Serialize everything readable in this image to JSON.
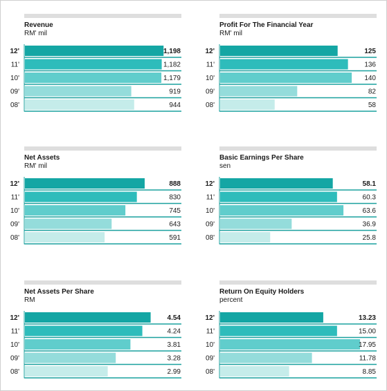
{
  "chart_data": [
    {
      "type": "bar",
      "title": "Revenue",
      "unit": "RM' mil",
      "categories": [
        "12'",
        "11'",
        "10'",
        "09'",
        "08'"
      ],
      "values": [
        1198,
        1182,
        1179,
        919,
        944
      ],
      "value_labels": [
        "1,198",
        "1,182",
        "1,179",
        "919",
        "944"
      ],
      "xlim": [
        0,
        1340
      ]
    },
    {
      "type": "bar",
      "title": "Profit For The Financial Year",
      "unit": "RM' mil",
      "categories": [
        "12'",
        "11'",
        "10'",
        "09'",
        "08'"
      ],
      "values": [
        125,
        136,
        140,
        82,
        58
      ],
      "value_labels": [
        "125",
        "136",
        "140",
        "82",
        "58"
      ],
      "xlim": [
        0,
        165
      ]
    },
    {
      "type": "bar",
      "title": "Net Assets",
      "unit": "RM' mil",
      "categories": [
        "12'",
        "11'",
        "10'",
        "09'",
        "08'"
      ],
      "values": [
        888,
        830,
        745,
        643,
        591
      ],
      "value_labels": [
        "888",
        "830",
        "745",
        "643",
        "591"
      ],
      "xlim": [
        0,
        1150
      ]
    },
    {
      "type": "bar",
      "title": "Basic Earnings Per Share",
      "unit": "sen",
      "categories": [
        "12'",
        "11'",
        "10'",
        "09'",
        "08'"
      ],
      "values": [
        58.1,
        60.3,
        63.6,
        36.9,
        25.8
      ],
      "value_labels": [
        "58.1",
        "60.3",
        "63.6",
        "36.9",
        "25.8"
      ],
      "xlim": [
        0,
        80
      ]
    },
    {
      "type": "bar",
      "title": "Net Assets Per Share",
      "unit": "RM",
      "categories": [
        "12'",
        "11'",
        "10'",
        "09'",
        "08'"
      ],
      "values": [
        4.54,
        4.24,
        3.81,
        3.28,
        2.99
      ],
      "value_labels": [
        "4.54",
        "4.24",
        "3.81",
        "3.28",
        "2.99"
      ],
      "xlim": [
        0,
        5.6
      ]
    },
    {
      "type": "bar",
      "title": "Return On Equity Holders",
      "unit": "percent",
      "categories": [
        "12'",
        "11'",
        "10'",
        "09'",
        "08'"
      ],
      "values": [
        13.23,
        15.0,
        17.95,
        11.78,
        8.85
      ],
      "value_labels": [
        "13.23",
        "15.00",
        "17.95",
        "11.78",
        "8.85"
      ],
      "xlim": [
        0,
        19.9
      ]
    }
  ],
  "colors": {
    "bar_fills": [
      "#14a6a4",
      "#2ebcbb",
      "#60cdcc",
      "#94dcdb",
      "#c5ecea"
    ],
    "row_rule": "#19a09e",
    "top_bar": "#dedede"
  }
}
